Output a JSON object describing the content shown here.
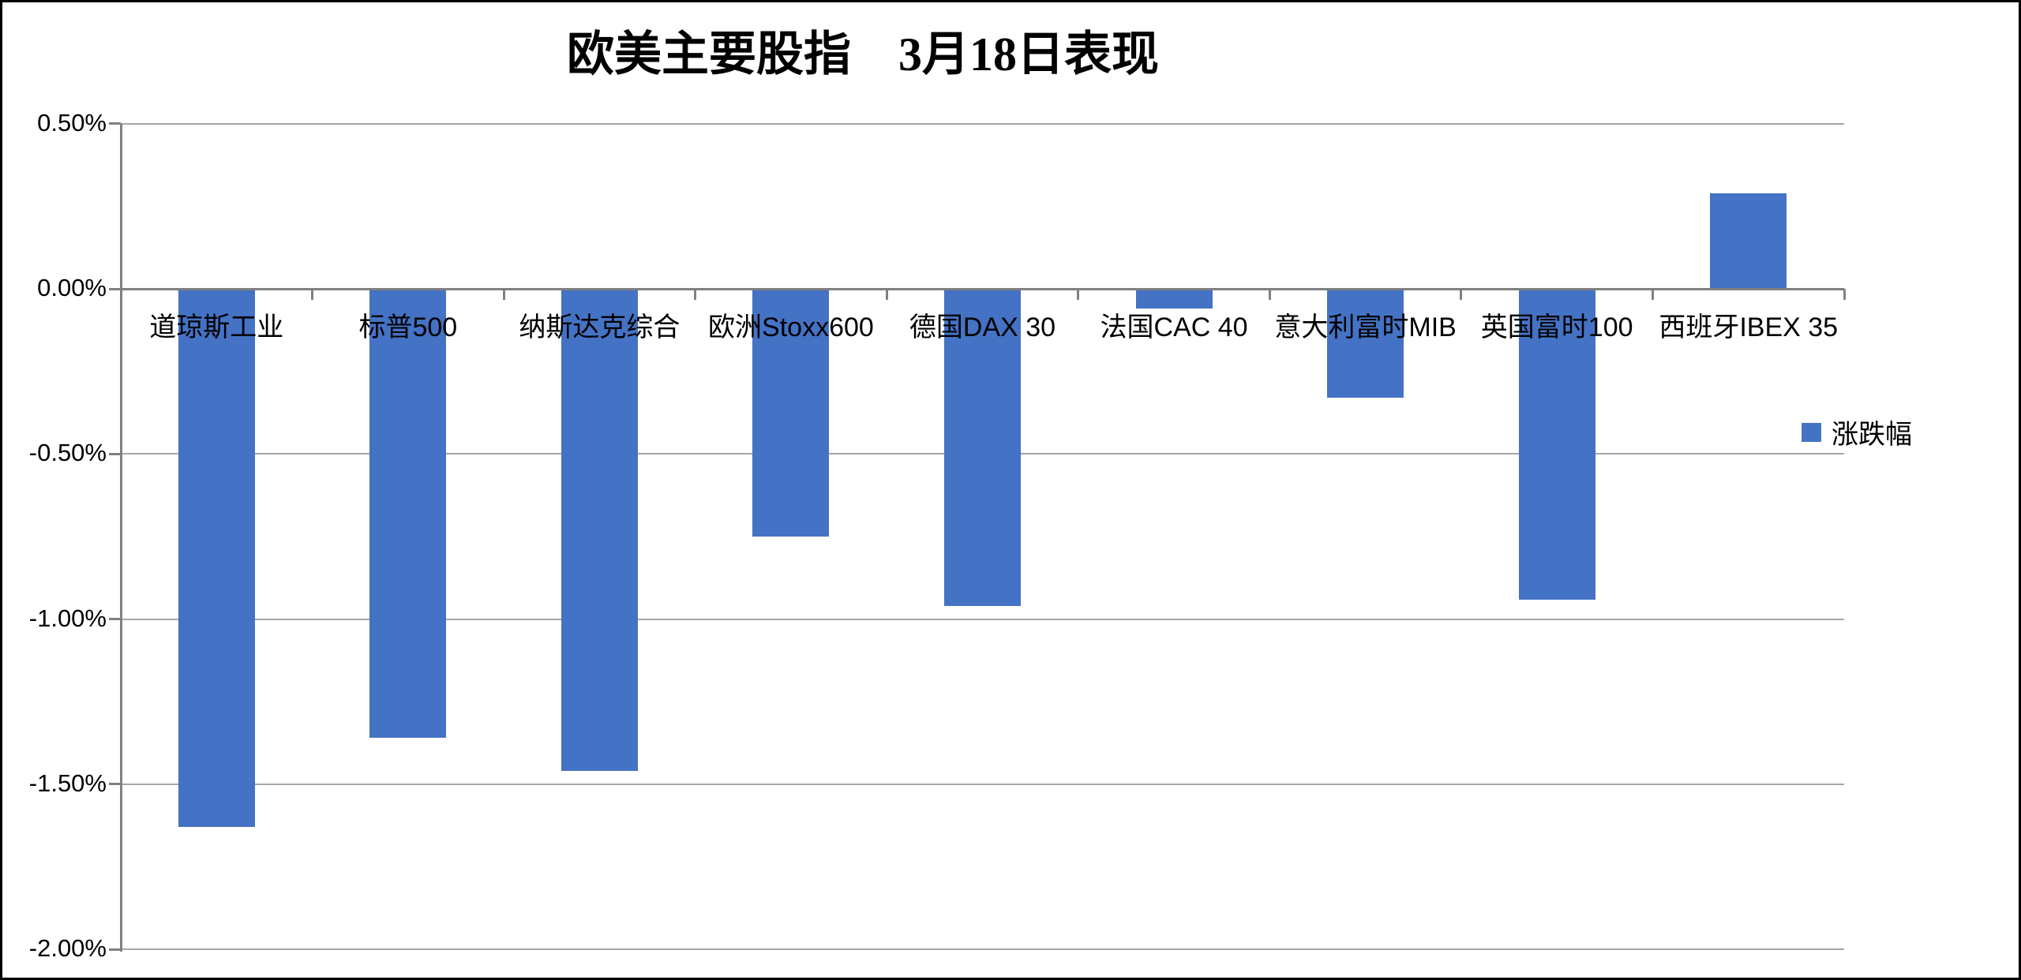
{
  "chart_data": {
    "type": "bar",
    "title": "欧美主要股指　3月18日表现",
    "series_name": "涨跌幅",
    "categories": [
      "道琼斯工业",
      "标普500",
      "纳斯达克综合",
      "欧洲Stoxx600",
      "德国DAX 30",
      "法国CAC 40",
      "意大利富时MIB",
      "英国富时100",
      "西班牙IBEX 35"
    ],
    "values": [
      -1.63,
      -1.36,
      -1.46,
      -0.75,
      -0.96,
      -0.06,
      -0.33,
      -0.94,
      0.29
    ],
    "unit": "%",
    "y_ticks": [
      {
        "label": "0.50%",
        "value": 0.5
      },
      {
        "label": "0.00%",
        "value": 0.0
      },
      {
        "label": "-0.50%",
        "value": -0.5
      },
      {
        "label": "-1.00%",
        "value": -1.0
      },
      {
        "label": "-1.50%",
        "value": -1.5
      },
      {
        "label": "-2.00%",
        "value": -2.0
      }
    ],
    "ylim": [
      -2.0,
      0.5
    ],
    "xlabel": "",
    "ylabel": "",
    "grid": true,
    "legend_position": "middle-right",
    "bar_color": "#4472C4"
  },
  "colors": {
    "bar": "#4472C4",
    "gridline": "#A6A6A6",
    "axis": "#808080",
    "text": "#000000",
    "background": "#FFFFFF",
    "border": "#000000"
  }
}
